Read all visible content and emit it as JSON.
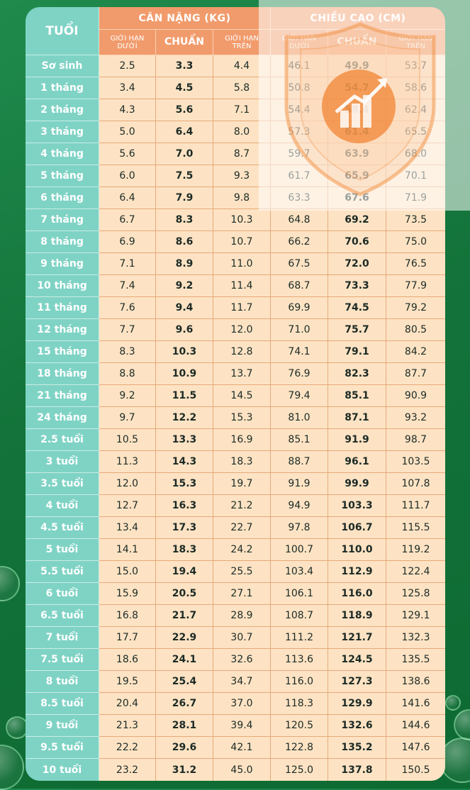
{
  "header": {
    "age": "TUỔI",
    "weight_group": "CÂN NẶNG (KG)",
    "height_group": "CHIỀU CAO (CM)",
    "sub_lower": "GIỚI HẠN DƯỚI",
    "sub_std": "CHUẨN",
    "sub_upper": "GIỚI HẠN TRÊN"
  },
  "rows": [
    {
      "age": "Sơ sinh",
      "w_lo": "2.5",
      "w_std": "3.3",
      "w_hi": "4.4",
      "h_lo": "46.1",
      "h_std": "49.9",
      "h_hi": "53.7"
    },
    {
      "age": "1 tháng",
      "w_lo": "3.4",
      "w_std": "4.5",
      "w_hi": "5.8",
      "h_lo": "50.8",
      "h_std": "54.7",
      "h_hi": "58.6"
    },
    {
      "age": "2 tháng",
      "w_lo": "4.3",
      "w_std": "5.6",
      "w_hi": "7.1",
      "h_lo": "54.4",
      "h_std": "58.4",
      "h_hi": "62.4"
    },
    {
      "age": "3 tháng",
      "w_lo": "5.0",
      "w_std": "6.4",
      "w_hi": "8.0",
      "h_lo": "57.3",
      "h_std": "61.4",
      "h_hi": "65.5"
    },
    {
      "age": "4 tháng",
      "w_lo": "5.6",
      "w_std": "7.0",
      "w_hi": "8.7",
      "h_lo": "59.7",
      "h_std": "63.9",
      "h_hi": "68.0"
    },
    {
      "age": "5 tháng",
      "w_lo": "6.0",
      "w_std": "7.5",
      "w_hi": "9.3",
      "h_lo": "61.7",
      "h_std": "65.9",
      "h_hi": "70.1"
    },
    {
      "age": "6 tháng",
      "w_lo": "6.4",
      "w_std": "7.9",
      "w_hi": "9.8",
      "h_lo": "63.3",
      "h_std": "67.6",
      "h_hi": "71.9"
    },
    {
      "age": "7 tháng",
      "w_lo": "6.7",
      "w_std": "8.3",
      "w_hi": "10.3",
      "h_lo": "64.8",
      "h_std": "69.2",
      "h_hi": "73.5"
    },
    {
      "age": "8 tháng",
      "w_lo": "6.9",
      "w_std": "8.6",
      "w_hi": "10.7",
      "h_lo": "66.2",
      "h_std": "70.6",
      "h_hi": "75.0"
    },
    {
      "age": "9 tháng",
      "w_lo": "7.1",
      "w_std": "8.9",
      "w_hi": "11.0",
      "h_lo": "67.5",
      "h_std": "72.0",
      "h_hi": "76.5"
    },
    {
      "age": "10 tháng",
      "w_lo": "7.4",
      "w_std": "9.2",
      "w_hi": "11.4",
      "h_lo": "68.7",
      "h_std": "73.3",
      "h_hi": "77.9"
    },
    {
      "age": "11 tháng",
      "w_lo": "7.6",
      "w_std": "9.4",
      "w_hi": "11.7",
      "h_lo": "69.9",
      "h_std": "74.5",
      "h_hi": "79.2"
    },
    {
      "age": "12 tháng",
      "w_lo": "7.7",
      "w_std": "9.6",
      "w_hi": "12.0",
      "h_lo": "71.0",
      "h_std": "75.7",
      "h_hi": "80.5"
    },
    {
      "age": "15 tháng",
      "w_lo": "8.3",
      "w_std": "10.3",
      "w_hi": "12.8",
      "h_lo": "74.1",
      "h_std": "79.1",
      "h_hi": "84.2"
    },
    {
      "age": "18 tháng",
      "w_lo": "8.8",
      "w_std": "10.9",
      "w_hi": "13.7",
      "h_lo": "76.9",
      "h_std": "82.3",
      "h_hi": "87.7"
    },
    {
      "age": "21 tháng",
      "w_lo": "9.2",
      "w_std": "11.5",
      "w_hi": "14.5",
      "h_lo": "79.4",
      "h_std": "85.1",
      "h_hi": "90.9"
    },
    {
      "age": "24 tháng",
      "w_lo": "9.7",
      "w_std": "12.2",
      "w_hi": "15.3",
      "h_lo": "81.0",
      "h_std": "87.1",
      "h_hi": "93.2"
    },
    {
      "age": "2.5 tuổi",
      "w_lo": "10.5",
      "w_std": "13.3",
      "w_hi": "16.9",
      "h_lo": "85.1",
      "h_std": "91.9",
      "h_hi": "98.7"
    },
    {
      "age": "3 tuổi",
      "w_lo": "11.3",
      "w_std": "14.3",
      "w_hi": "18.3",
      "h_lo": "88.7",
      "h_std": "96.1",
      "h_hi": "103.5"
    },
    {
      "age": "3.5 tuổi",
      "w_lo": "12.0",
      "w_std": "15.3",
      "w_hi": "19.7",
      "h_lo": "91.9",
      "h_std": "99.9",
      "h_hi": "107.8"
    },
    {
      "age": "4 tuổi",
      "w_lo": "12.7",
      "w_std": "16.3",
      "w_hi": "21.2",
      "h_lo": "94.9",
      "h_std": "103.3",
      "h_hi": "111.7"
    },
    {
      "age": "4.5 tuổi",
      "w_lo": "13.4",
      "w_std": "17.3",
      "w_hi": "22.7",
      "h_lo": "97.8",
      "h_std": "106.7",
      "h_hi": "115.5"
    },
    {
      "age": "5 tuổi",
      "w_lo": "14.1",
      "w_std": "18.3",
      "w_hi": "24.2",
      "h_lo": "100.7",
      "h_std": "110.0",
      "h_hi": "119.2"
    },
    {
      "age": "5.5 tuổi",
      "w_lo": "15.0",
      "w_std": "19.4",
      "w_hi": "25.5",
      "h_lo": "103.4",
      "h_std": "112.9",
      "h_hi": "122.4"
    },
    {
      "age": "6 tuổi",
      "w_lo": "15.9",
      "w_std": "20.5",
      "w_hi": "27.1",
      "h_lo": "106.1",
      "h_std": "116.0",
      "h_hi": "125.8"
    },
    {
      "age": "6.5 tuổi",
      "w_lo": "16.8",
      "w_std": "21.7",
      "w_hi": "28.9",
      "h_lo": "108.7",
      "h_std": "118.9",
      "h_hi": "129.1"
    },
    {
      "age": "7 tuổi",
      "w_lo": "17.7",
      "w_std": "22.9",
      "w_hi": "30.7",
      "h_lo": "111.2",
      "h_std": "121.7",
      "h_hi": "132.3"
    },
    {
      "age": "7.5 tuổi",
      "w_lo": "18.6",
      "w_std": "24.1",
      "w_hi": "32.6",
      "h_lo": "113.6",
      "h_std": "124.5",
      "h_hi": "135.5"
    },
    {
      "age": "8 tuổi",
      "w_lo": "19.5",
      "w_std": "25.4",
      "w_hi": "34.7",
      "h_lo": "116.0",
      "h_std": "127.3",
      "h_hi": "138.6"
    },
    {
      "age": "8.5 tuổi",
      "w_lo": "20.4",
      "w_std": "26.7",
      "w_hi": "37.0",
      "h_lo": "118.3",
      "h_std": "129.9",
      "h_hi": "141.6"
    },
    {
      "age": "9 tuổi",
      "w_lo": "21.3",
      "w_std": "28.1",
      "w_hi": "39.4",
      "h_lo": "120.5",
      "h_std": "132.6",
      "h_hi": "144.6"
    },
    {
      "age": "9.5 tuổi",
      "w_lo": "22.2",
      "w_std": "29.6",
      "w_hi": "42.1",
      "h_lo": "122.8",
      "h_std": "135.2",
      "h_hi": "147.6"
    },
    {
      "age": "10 tuổi",
      "w_lo": "23.2",
      "w_std": "31.2",
      "w_hi": "45.0",
      "h_lo": "125.0",
      "h_std": "137.8",
      "h_hi": "150.5"
    }
  ],
  "colors": {
    "background_green": "#13733a",
    "age_column": "#7fd3c5",
    "header_orange": "#f19b6c",
    "cell_peach": "#fde3c4",
    "watermark_orange": "#f08a3a"
  },
  "icons": {
    "watermark": "shield-growth-chart-icon"
  }
}
